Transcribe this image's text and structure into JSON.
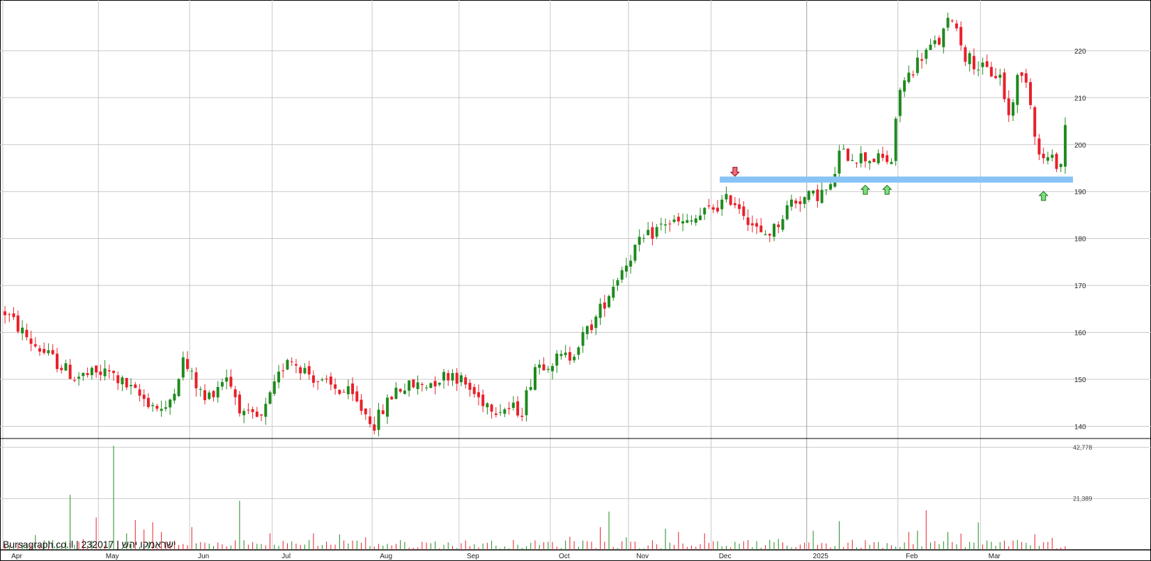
{
  "chart_data": {
    "type": "candlestick",
    "title": "",
    "watermark": "Bursagraph.co.il | 232017 | ישראמקו יהש",
    "colors": {
      "up": "#1f8a1f",
      "down": "#e8202a",
      "band": "#87c3f5",
      "grid": "#c8c8c8",
      "up_arrow": "#7be07b",
      "down_arrow": "#f06a7a"
    },
    "price_axis": {
      "ticks": [
        140,
        150,
        160,
        170,
        180,
        190,
        200,
        210,
        220
      ],
      "range": [
        137.4,
        230.8
      ]
    },
    "volume_axis": {
      "tick_labels": [
        "42,778",
        "21,389"
      ],
      "ticks": [
        42778,
        21389
      ],
      "range": [
        0,
        46500
      ]
    },
    "x_axis": {
      "labels": [
        "Apr",
        "May",
        "Jun",
        "Jul",
        "Aug",
        "Sep",
        "Oct",
        "Nov",
        "Dec",
        "2025",
        "Feb",
        "Mar"
      ],
      "label_positions": [
        0,
        22,
        43,
        62,
        85,
        105,
        126,
        144,
        163,
        185,
        206,
        225
      ],
      "total_bars": 245
    },
    "support_band": {
      "low": 191.9,
      "high": 193.2,
      "from_bar": 165,
      "to_bar": 244
    },
    "arrows": [
      {
        "bar": 168,
        "direction": "down",
        "price": 194.3
      },
      {
        "bar": 198,
        "direction": "up",
        "price": 190.3
      },
      {
        "bar": 203,
        "direction": "up",
        "price": 190.3
      },
      {
        "bar": 239,
        "direction": "up",
        "price": 189.0
      }
    ],
    "segments": [
      {
        "bar": 0,
        "price": 164.3
      },
      {
        "bar": 6,
        "price": 158
      },
      {
        "bar": 10,
        "price": 155
      },
      {
        "bar": 16,
        "price": 150.5
      },
      {
        "bar": 24,
        "price": 151.5
      },
      {
        "bar": 30,
        "price": 147
      },
      {
        "bar": 37,
        "price": 143
      },
      {
        "bar": 41,
        "price": 154
      },
      {
        "bar": 46,
        "price": 145.5
      },
      {
        "bar": 51,
        "price": 151
      },
      {
        "bar": 55,
        "price": 142
      },
      {
        "bar": 59,
        "price": 141.5
      },
      {
        "bar": 65,
        "price": 155
      },
      {
        "bar": 73,
        "price": 149
      },
      {
        "bar": 79,
        "price": 147
      },
      {
        "bar": 85,
        "price": 140.5
      },
      {
        "bar": 90,
        "price": 148
      },
      {
        "bar": 97,
        "price": 149
      },
      {
        "bar": 103,
        "price": 151.5
      },
      {
        "bar": 109,
        "price": 146
      },
      {
        "bar": 113,
        "price": 144
      },
      {
        "bar": 119,
        "price": 143.5
      },
      {
        "bar": 122,
        "price": 153
      },
      {
        "bar": 130,
        "price": 155
      },
      {
        "bar": 136,
        "price": 163
      },
      {
        "bar": 141,
        "price": 172
      },
      {
        "bar": 145,
        "price": 178
      },
      {
        "bar": 152,
        "price": 183.5
      },
      {
        "bar": 157,
        "price": 183
      },
      {
        "bar": 162,
        "price": 186
      },
      {
        "bar": 167,
        "price": 188.5
      },
      {
        "bar": 169,
        "price": 187
      },
      {
        "bar": 174,
        "price": 180.5
      },
      {
        "bar": 177,
        "price": 182
      },
      {
        "bar": 181,
        "price": 188
      },
      {
        "bar": 186,
        "price": 189
      },
      {
        "bar": 190,
        "price": 190.5
      },
      {
        "bar": 192,
        "price": 198
      },
      {
        "bar": 200,
        "price": 197
      },
      {
        "bar": 204,
        "price": 196.5
      },
      {
        "bar": 206,
        "price": 212
      },
      {
        "bar": 211,
        "price": 219
      },
      {
        "bar": 215,
        "price": 222
      },
      {
        "bar": 218,
        "price": 227.5
      },
      {
        "bar": 221,
        "price": 219
      },
      {
        "bar": 225,
        "price": 216
      },
      {
        "bar": 229,
        "price": 214.5
      },
      {
        "bar": 231,
        "price": 206
      },
      {
        "bar": 233,
        "price": 214
      },
      {
        "bar": 235,
        "price": 214.5
      },
      {
        "bar": 238,
        "price": 197.5
      },
      {
        "bar": 241,
        "price": 196.5
      },
      {
        "bar": 243,
        "price": 196
      },
      {
        "bar": 244,
        "price": 204
      }
    ],
    "volume_spikes": [
      {
        "bar": 7,
        "value": 6200
      },
      {
        "bar": 11,
        "value": 4100
      },
      {
        "bar": 15,
        "value": 23000
      },
      {
        "bar": 18,
        "value": 4500
      },
      {
        "bar": 21,
        "value": 13500
      },
      {
        "bar": 25,
        "value": 43500
      },
      {
        "bar": 28,
        "value": 6900
      },
      {
        "bar": 30,
        "value": 12500
      },
      {
        "bar": 32,
        "value": 8500
      },
      {
        "bar": 34,
        "value": 11500
      },
      {
        "bar": 36,
        "value": 7500
      },
      {
        "bar": 43,
        "value": 9500
      },
      {
        "bar": 54,
        "value": 20500
      },
      {
        "bar": 61,
        "value": 6900
      },
      {
        "bar": 71,
        "value": 6900
      },
      {
        "bar": 77,
        "value": 6500
      },
      {
        "bar": 83,
        "value": 5200
      },
      {
        "bar": 130,
        "value": 5500
      },
      {
        "bar": 137,
        "value": 9500
      },
      {
        "bar": 139,
        "value": 16000
      },
      {
        "bar": 143,
        "value": 5200
      },
      {
        "bar": 152,
        "value": 8800
      },
      {
        "bar": 155,
        "value": 7500
      },
      {
        "bar": 161,
        "value": 6900
      },
      {
        "bar": 171,
        "value": 4100
      },
      {
        "bar": 178,
        "value": 4600
      },
      {
        "bar": 186,
        "value": 8000
      },
      {
        "bar": 192,
        "value": 12000
      },
      {
        "bar": 201,
        "value": 3200
      },
      {
        "bar": 208,
        "value": 7500
      },
      {
        "bar": 210,
        "value": 8000
      },
      {
        "bar": 212,
        "value": 16500
      },
      {
        "bar": 217,
        "value": 7500
      },
      {
        "bar": 220,
        "value": 6800
      },
      {
        "bar": 224,
        "value": 11500
      },
      {
        "bar": 230,
        "value": 3900
      },
      {
        "bar": 237,
        "value": 6500
      },
      {
        "bar": 241,
        "value": 5000
      }
    ]
  }
}
